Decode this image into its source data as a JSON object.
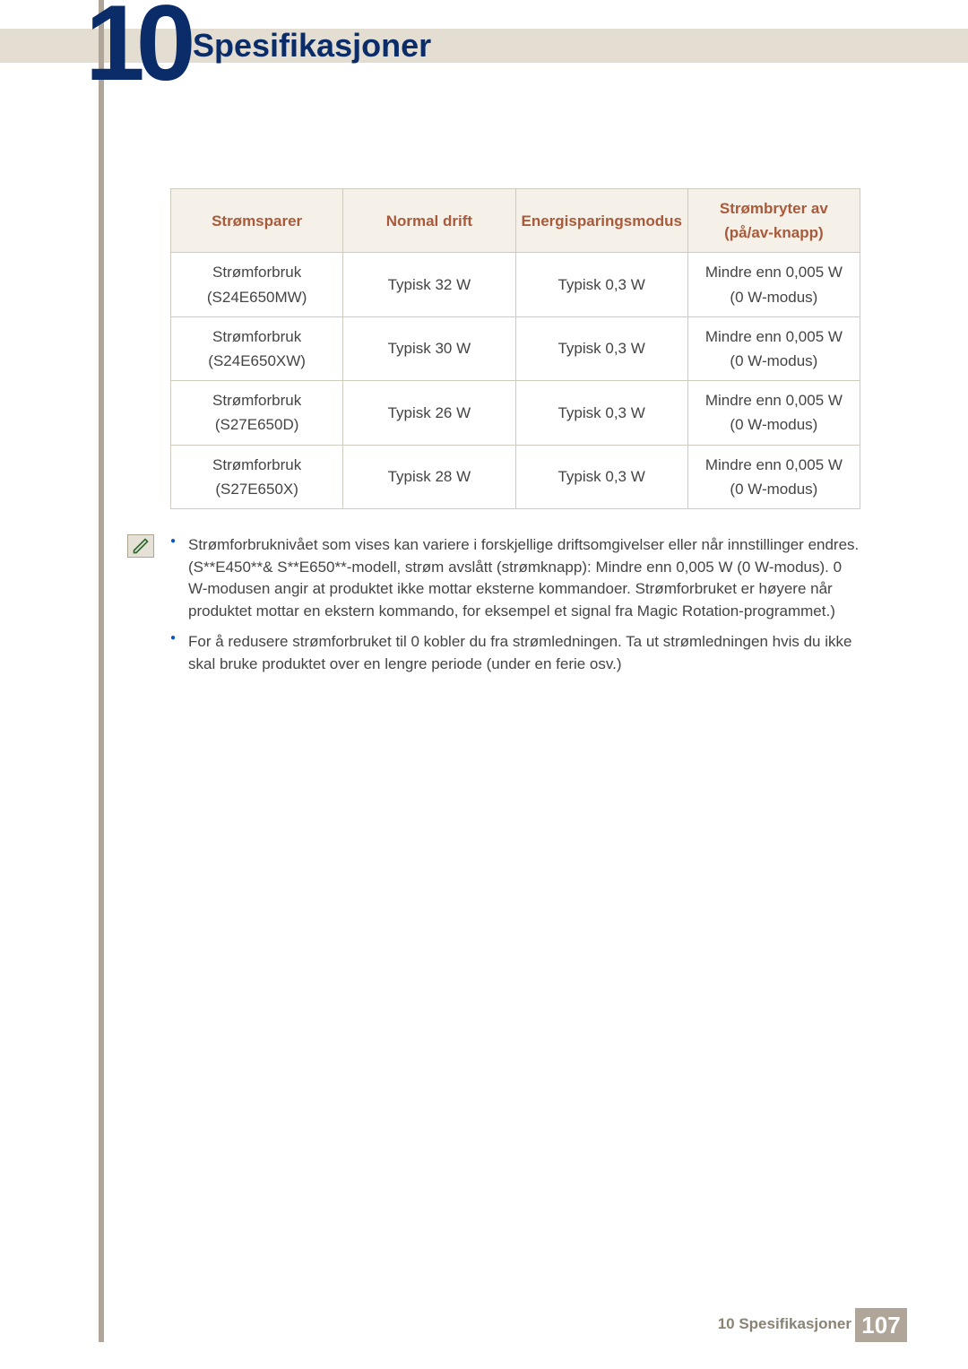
{
  "chapter": {
    "number": "10",
    "title": "Spesifikasjoner"
  },
  "colors": {
    "brand_blue": "#0a2d6a",
    "accent_tan": "#afa598",
    "header_band": "#e3ddd2",
    "table_header_bg": "#f5f1e8",
    "table_header_text": "#a95a3b",
    "table_border": "#cfcabe",
    "body_text": "#444444",
    "bullet_blue": "#0a56c4",
    "footer_text": "#8a8374"
  },
  "table": {
    "headers": [
      "Strømsparer",
      "Normal drift",
      "Energisparingsmodus",
      "Strømbryter av (på/av-knapp)"
    ],
    "rows": [
      {
        "model_line1": "Strømforbruk",
        "model_line2": "(S24E650MW)",
        "normal": "Typisk 32 W",
        "saving": "Typisk 0,3 W",
        "off_line1": "Mindre enn 0,005 W",
        "off_line2": "(0 W-modus)"
      },
      {
        "model_line1": "Strømforbruk",
        "model_line2": "(S24E650XW)",
        "normal": "Typisk 30 W",
        "saving": "Typisk 0,3 W",
        "off_line1": "Mindre enn 0,005 W",
        "off_line2": "(0 W-modus)"
      },
      {
        "model_line1": "Strømforbruk",
        "model_line2": "(S27E650D)",
        "normal": "Typisk 26 W",
        "saving": "Typisk 0,3 W",
        "off_line1": "Mindre enn 0,005 W",
        "off_line2": "(0 W-modus)"
      },
      {
        "model_line1": "Strømforbruk",
        "model_line2": "(S27E650X)",
        "normal": "Typisk 28 W",
        "saving": "Typisk 0,3 W",
        "off_line1": "Mindre enn 0,005 W",
        "off_line2": "(0 W-modus)"
      }
    ]
  },
  "notes": [
    "Strømforbruknivået som vises kan variere i forskjellige driftsomgivelser eller når innstillinger endres. (S**E450**& S**E650**-modell, strøm avslått (strømknapp): Mindre enn 0,005 W (0 W-modus). 0 W-modusen angir at produktet ikke mottar eksterne kommandoer. Strømforbruket er høyere når produktet mottar en ekstern kommando, for eksempel et signal fra Magic Rotation-programmet.)",
    "For å redusere strømforbruket til 0 kobler du fra strømledningen. Ta ut strømledningen hvis du ikke skal bruke produktet over en lengre periode (under en ferie osv.)"
  ],
  "footer": {
    "label": "10 Spesifikasjoner",
    "page": "107"
  }
}
